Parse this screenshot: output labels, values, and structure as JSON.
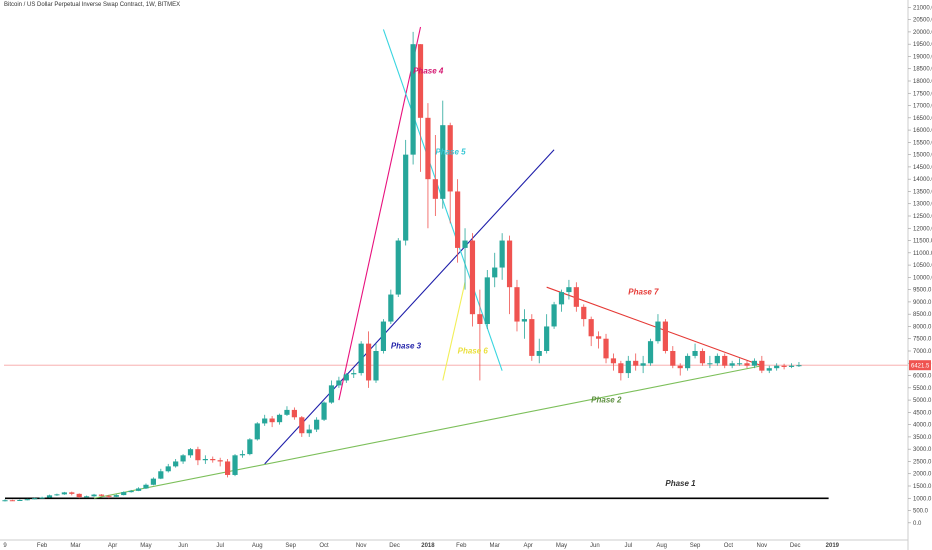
{
  "chart_data": {
    "type": "candlestick",
    "title": "Bitcoin / US Dollar Perpetual Inverse Swap Contract, 1W, BITMEX",
    "y_ticks": [
      0,
      500,
      1000,
      1500,
      2000,
      2500,
      3000,
      3500,
      4000,
      4500,
      5000,
      5500,
      6000,
      6500,
      7000,
      7500,
      8000,
      8500,
      9000,
      9500,
      10000,
      10500,
      11000,
      11500,
      12000,
      12500,
      13000,
      13500,
      14000,
      14500,
      15000,
      15500,
      16000,
      16500,
      17000,
      17500,
      18000,
      18500,
      19000,
      19500,
      20000,
      20500,
      21000
    ],
    "y_tick_labels": [
      "0.0",
      "500.0",
      "1000.0",
      "1500.0",
      "2000.0",
      "2500.0",
      "3000.0",
      "3500.0",
      "4000.0",
      "4500.0",
      "5000.0",
      "5500.0",
      "6000.0",
      "6500.0",
      "7000.0",
      "7500.0",
      "8000.0",
      "8500.0",
      "9000.0",
      "9500.0",
      "10000.0",
      "10500.0",
      "11000.0",
      "11500.0",
      "12000.0",
      "12500.0",
      "13000.0",
      "13500.0",
      "14000.0",
      "14500.0",
      "15000.0",
      "15500.0",
      "16000.0",
      "16500.0",
      "17000.0",
      "17500.0",
      "18000.0",
      "18500.0",
      "19000.0",
      "19500.0",
      "20000.0",
      "20500.0",
      "21000.0"
    ],
    "ylim": [
      -700,
      21300
    ],
    "x_labels": [
      "9",
      "Feb",
      "Mar",
      "Apr",
      "May",
      "Jun",
      "Jul",
      "Aug",
      "Sep",
      "Oct",
      "Nov",
      "Dec",
      "2018",
      "Feb",
      "Mar",
      "Apr",
      "May",
      "Jun",
      "Jul",
      "Aug",
      "Sep",
      "Oct",
      "Nov",
      "Dec",
      "2019"
    ],
    "x_label_weeks": [
      0,
      5,
      9.5,
      14.5,
      19,
      24,
      29,
      34,
      38.5,
      43,
      48,
      52.5,
      57,
      61.5,
      66,
      70.5,
      75,
      79.5,
      84,
      88.5,
      93,
      97.5,
      102,
      106.5,
      111.5
    ],
    "current_price": 6421.5,
    "current_price_label": "6421.5",
    "candles": [
      [
        900,
        920,
        960,
        870
      ],
      [
        920,
        915,
        940,
        900
      ],
      [
        915,
        930,
        955,
        905
      ],
      [
        930,
        960,
        980,
        915
      ],
      [
        960,
        1000,
        1020,
        950
      ],
      [
        1000,
        1030,
        1060,
        985
      ],
      [
        1030,
        1120,
        1150,
        1020
      ],
      [
        1120,
        1160,
        1190,
        1100
      ],
      [
        1160,
        1240,
        1260,
        1140
      ],
      [
        1240,
        1180,
        1270,
        1120
      ],
      [
        1180,
        1050,
        1200,
        1000
      ],
      [
        1050,
        1080,
        1110,
        1020
      ],
      [
        1080,
        1150,
        1180,
        1060
      ],
      [
        1150,
        1100,
        1170,
        1080
      ],
      [
        1100,
        1060,
        1140,
        1000
      ],
      [
        1060,
        1130,
        1160,
        1050
      ],
      [
        1130,
        1250,
        1280,
        1120
      ],
      [
        1250,
        1300,
        1340,
        1230
      ],
      [
        1300,
        1400,
        1450,
        1290
      ],
      [
        1400,
        1550,
        1600,
        1380
      ],
      [
        1550,
        1800,
        1850,
        1530
      ],
      [
        1800,
        2100,
        2200,
        1780
      ],
      [
        2100,
        2300,
        2400,
        2050
      ],
      [
        2300,
        2500,
        2600,
        2250
      ],
      [
        2500,
        2750,
        2800,
        2400
      ],
      [
        2750,
        3000,
        3050,
        2650
      ],
      [
        3000,
        2550,
        3100,
        2350
      ],
      [
        2550,
        2600,
        2750,
        2400
      ],
      [
        2600,
        2550,
        2700,
        2450
      ],
      [
        2550,
        2500,
        2650,
        2300
      ],
      [
        2500,
        1950,
        2600,
        1850
      ],
      [
        1950,
        2750,
        2800,
        1900
      ],
      [
        2750,
        2800,
        2950,
        2650
      ],
      [
        2800,
        3400,
        3450,
        2750
      ],
      [
        3400,
        4050,
        4100,
        3350
      ],
      [
        4050,
        4250,
        4400,
        3950
      ],
      [
        4250,
        4100,
        4350,
        3900
      ],
      [
        4100,
        4400,
        4450,
        4000
      ],
      [
        4400,
        4600,
        4750,
        4350
      ],
      [
        4600,
        4300,
        4700,
        4200
      ],
      [
        4300,
        3650,
        4350,
        3500
      ],
      [
        3650,
        3800,
        4000,
        3500
      ],
      [
        3800,
        4200,
        4300,
        3700
      ],
      [
        4200,
        4900,
        4950,
        4150
      ],
      [
        4900,
        5600,
        5800,
        4850
      ],
      [
        5600,
        5800,
        5950,
        5500
      ],
      [
        5800,
        6050,
        6100,
        5700
      ],
      [
        6050,
        6100,
        6250,
        5900
      ],
      [
        6100,
        7300,
        7400,
        6000
      ],
      [
        7300,
        5800,
        7800,
        5500
      ],
      [
        5800,
        7000,
        7300,
        5700
      ],
      [
        7000,
        8200,
        8300,
        6900
      ],
      [
        8200,
        9300,
        9500,
        8100
      ],
      [
        9300,
        11500,
        11600,
        9200
      ],
      [
        11500,
        15000,
        15600,
        11300
      ],
      [
        15000,
        19500,
        20000,
        14600
      ],
      [
        19500,
        16500,
        19500,
        14300
      ],
      [
        16500,
        14000,
        17100,
        12000
      ],
      [
        14000,
        13200,
        15800,
        12500
      ],
      [
        13200,
        16200,
        17200,
        12800
      ],
      [
        16200,
        13500,
        16300,
        12200
      ],
      [
        13500,
        11200,
        14000,
        10600
      ],
      [
        11200,
        11500,
        12000,
        9500
      ],
      [
        11500,
        8500,
        11800,
        8000
      ],
      [
        8500,
        8100,
        9500,
        5800
      ],
      [
        8100,
        10000,
        10300,
        7900
      ],
      [
        10000,
        10400,
        11000,
        9600
      ],
      [
        10400,
        11500,
        11800,
        9900
      ],
      [
        11500,
        9600,
        11700,
        8500
      ],
      [
        9600,
        8200,
        9900,
        7800
      ],
      [
        8200,
        8300,
        8700,
        7500
      ],
      [
        8300,
        6800,
        8500,
        6600
      ],
      [
        6800,
        7000,
        7500,
        6500
      ],
      [
        7000,
        8000,
        8500,
        6900
      ],
      [
        8000,
        8900,
        9000,
        7900
      ],
      [
        8900,
        9400,
        9500,
        8600
      ],
      [
        9400,
        9600,
        9900,
        9100
      ],
      [
        9600,
        8800,
        9800,
        8600
      ],
      [
        8800,
        8300,
        8900,
        8000
      ],
      [
        8300,
        7600,
        8400,
        7200
      ],
      [
        7600,
        7500,
        7800,
        7100
      ],
      [
        7500,
        6700,
        7700,
        6500
      ],
      [
        6700,
        6500,
        6900,
        6200
      ],
      [
        6500,
        6100,
        6600,
        5800
      ],
      [
        6100,
        6600,
        6800,
        5900
      ],
      [
        6600,
        6400,
        6900,
        6200
      ],
      [
        6400,
        6500,
        6800,
        6100
      ],
      [
        6500,
        7400,
        7500,
        6400
      ],
      [
        7400,
        8200,
        8500,
        7300
      ],
      [
        8200,
        7000,
        8300,
        6900
      ],
      [
        7000,
        6400,
        7200,
        6300
      ],
      [
        6400,
        6300,
        6500,
        6000
      ],
      [
        6300,
        6800,
        6900,
        6200
      ],
      [
        6800,
        7000,
        7300,
        6700
      ],
      [
        7000,
        6500,
        7100,
        6400
      ],
      [
        6500,
        6500,
        6800,
        6300
      ],
      [
        6500,
        6800,
        6900,
        6400
      ],
      [
        6800,
        6400,
        6900,
        6300
      ],
      [
        6400,
        6500,
        6600,
        6300
      ],
      [
        6500,
        6500,
        6700,
        6400
      ],
      [
        6500,
        6400,
        6600,
        6300
      ],
      [
        6400,
        6600,
        6700,
        6300
      ],
      [
        6600,
        6200,
        6800,
        6100
      ],
      [
        6200,
        6300,
        6400,
        6100
      ],
      [
        6300,
        6400,
        6500,
        6200
      ],
      [
        6400,
        6350,
        6480,
        6250
      ],
      [
        6350,
        6400,
        6500,
        6300
      ],
      [
        6400,
        6421.5,
        6550,
        6350
      ]
    ],
    "trendlines": [
      {
        "name": "Phase 1",
        "color": "#000000",
        "points": [
          [
            0,
            1000
          ],
          [
            111,
            1000
          ]
        ]
      },
      {
        "name": "Phase 2",
        "color": "#7cbf5a",
        "points": [
          [
            12,
            1000
          ],
          [
            102,
            6400
          ]
        ]
      },
      {
        "name": "Phase 3",
        "color": "#1f1faa",
        "points": [
          [
            35,
            2400
          ],
          [
            74,
            15200
          ]
        ]
      },
      {
        "name": "Phase 4",
        "color": "#e8127d",
        "points": [
          [
            45,
            5000
          ],
          [
            56,
            20200
          ]
        ]
      },
      {
        "name": "Phase 5",
        "color": "#39d5e0",
        "points": [
          [
            51,
            20100
          ],
          [
            67,
            6200
          ]
        ]
      },
      {
        "name": "Phase 6",
        "color": "#f2ef58",
        "points": [
          [
            59,
            5800
          ],
          [
            62,
            9800
          ]
        ]
      },
      {
        "name": "Phase 7",
        "color": "#e53935",
        "points": [
          [
            73,
            9600
          ],
          [
            102,
            6400
          ]
        ]
      }
    ],
    "labels": [
      {
        "text": "Phase 1",
        "color": "#333333",
        "week": 89,
        "value": 1500
      },
      {
        "text": "Phase 2",
        "color": "#5d8f3f",
        "week": 79,
        "value": 4900
      },
      {
        "text": "Phase 3",
        "color": "#1f1fa8",
        "week": 52,
        "value": 7100
      },
      {
        "text": "Phase 4",
        "color": "#d4156f",
        "week": 55,
        "value": 18300
      },
      {
        "text": "Phase 5",
        "color": "#36c6d4",
        "week": 58,
        "value": 15000
      },
      {
        "text": "Phase 6",
        "color": "#eadf3a",
        "week": 61,
        "value": 6900
      },
      {
        "text": "Phase 7",
        "color": "#e53935",
        "week": 84,
        "value": 9300
      }
    ],
    "colors": {
      "up": "#26a69a",
      "down": "#ef5350",
      "price_line": "#f8a4a4",
      "price_tag": "#ef5350"
    }
  }
}
